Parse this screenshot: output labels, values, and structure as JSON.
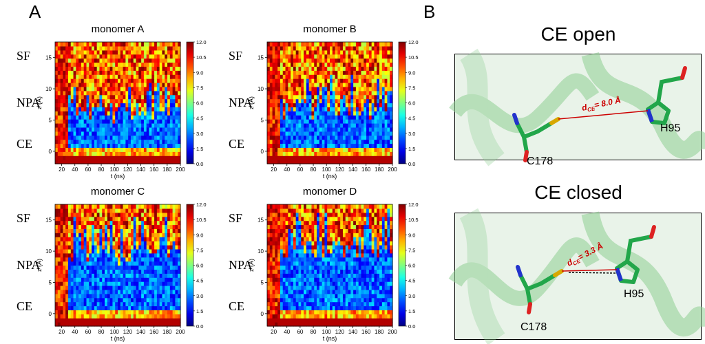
{
  "panels": {
    "a": "A",
    "b": "B"
  },
  "chart_data": [
    {
      "type": "heatmap",
      "title": "monomer A",
      "xlabel": "t (ns)",
      "ylabel": "z (Å)",
      "xlim": [
        10,
        200
      ],
      "ylim": [
        -2,
        17.5
      ],
      "xticks": [
        20,
        40,
        60,
        80,
        100,
        120,
        140,
        160,
        180,
        200
      ],
      "yticks": [
        0,
        5,
        10,
        15
      ],
      "region_labels": [
        "SF",
        "NPA",
        "CE"
      ],
      "colorbar": {
        "min": 0.0,
        "max": 12.0,
        "ticks": [
          "0.0",
          "1.5",
          "3.0",
          "4.5",
          "6.0",
          "7.5",
          "9.0",
          "10.5",
          "12.0"
        ]
      },
      "profile": {
        "floor": [
          -0.6,
          4.5
        ],
        "open_fraction": 0.55
      }
    },
    {
      "type": "heatmap",
      "title": "monomer B",
      "xlabel": "t (ns)",
      "ylabel": "z (Å)",
      "xlim": [
        10,
        200
      ],
      "ylim": [
        -2,
        17.5
      ],
      "xticks": [
        20,
        40,
        60,
        80,
        100,
        120,
        140,
        160,
        180,
        200
      ],
      "yticks": [
        0,
        5,
        10,
        15
      ],
      "region_labels": [
        "SF",
        "NPA",
        "CE"
      ],
      "colorbar": {
        "min": 0.0,
        "max": 12.0,
        "ticks": [
          "0.0",
          "1.5",
          "3.0",
          "4.5",
          "6.0",
          "7.5",
          "9.0",
          "10.5",
          "12.0"
        ]
      },
      "profile": {
        "floor": [
          -0.6,
          5.0
        ],
        "open_fraction": 0.6
      }
    },
    {
      "type": "heatmap",
      "title": "monomer C",
      "xlabel": "t (ns)",
      "ylabel": "z (Å)",
      "xlim": [
        10,
        200
      ],
      "ylim": [
        -2,
        17.5
      ],
      "xticks": [
        20,
        40,
        60,
        80,
        100,
        120,
        140,
        160,
        180,
        200
      ],
      "yticks": [
        0,
        5,
        10,
        15
      ],
      "region_labels": [
        "SF",
        "NPA",
        "CE"
      ],
      "colorbar": {
        "min": 0.0,
        "max": 12.0,
        "ticks": [
          "0.0",
          "1.5",
          "3.0",
          "4.5",
          "6.0",
          "7.5",
          "9.0",
          "10.5",
          "12.0"
        ]
      },
      "profile": {
        "floor": [
          -0.6,
          8.0
        ],
        "open_fraction": 0.5
      }
    },
    {
      "type": "heatmap",
      "title": "monomer D",
      "xlabel": "t (ns)",
      "ylabel": "z (Å)",
      "xlim": [
        10,
        200
      ],
      "ylim": [
        -2,
        17.5
      ],
      "xticks": [
        20,
        40,
        60,
        80,
        100,
        120,
        140,
        160,
        180,
        200
      ],
      "yticks": [
        0,
        5,
        10,
        15
      ],
      "region_labels": [
        "SF",
        "NPA",
        "CE"
      ],
      "colorbar": {
        "min": 0.0,
        "max": 12.0,
        "ticks": [
          "0.0",
          "1.5",
          "3.0",
          "4.5",
          "6.0",
          "7.5",
          "9.0",
          "10.5",
          "12.0"
        ]
      },
      "profile": {
        "floor": [
          -0.6,
          9.0
        ],
        "open_fraction": 0.4
      }
    }
  ],
  "structures": [
    {
      "title": "CE open",
      "distance_label": "= 8.0 Å",
      "res1": "C178",
      "res2": "H95"
    },
    {
      "title": "CE closed",
      "distance_label": "= 3.3 Å",
      "res1": "C178",
      "res2": "H95"
    }
  ],
  "distance_symbol": {
    "base": "d",
    "sub": "CE"
  },
  "colors": {
    "protein": "#8fcf93",
    "carbon": "#22a64a",
    "sulfur": "#d8a800",
    "nitrogen": "#2233cc",
    "oxygen": "#dd2222",
    "distance": "#cc0000"
  }
}
